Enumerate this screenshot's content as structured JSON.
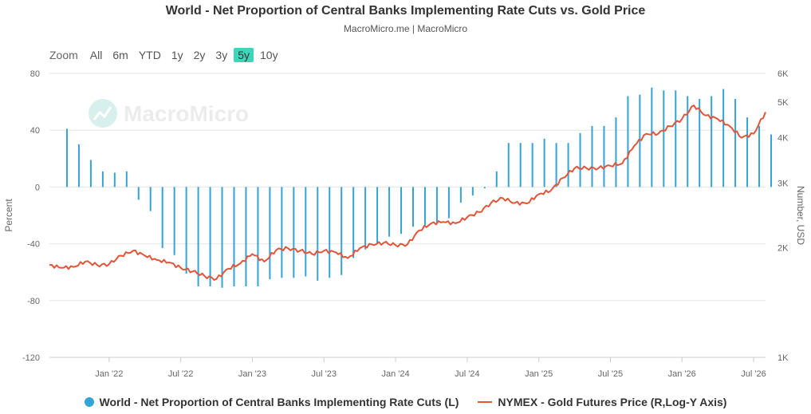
{
  "header": {
    "title": "World - Net Proportion of Central Banks Implementing Rate Cuts vs. Gold Price",
    "subtitle": "MacroMicro.me | MacroMicro"
  },
  "range_selector": {
    "zoom_label": "Zoom",
    "buttons": [
      "All",
      "6m",
      "YTD",
      "1y",
      "2y",
      "3y",
      "5y",
      "10y"
    ],
    "active": "5y"
  },
  "watermark": "MacroMicro",
  "colors": {
    "bars": "#34a4d6",
    "line": "#e1553a",
    "active_range": "#3ed6b8"
  },
  "chart_data": {
    "type": "bar+line",
    "title": "World - Net Proportion of Central Banks Implementing Rate Cuts vs. Gold Price",
    "y_left": {
      "label": "Percent",
      "min": -120,
      "max": 80,
      "ticks": [
        "80",
        "40",
        "0",
        "-40",
        "-80",
        "-120"
      ]
    },
    "y_right": {
      "label": "Number, USD",
      "scale": "log",
      "min": 1000,
      "max": 6000,
      "ticks": [
        "6K",
        "5K",
        "4K",
        "3K",
        "2K",
        "1K"
      ]
    },
    "x_ticks": [
      "Jan '22",
      "Jul '22",
      "Jan '23",
      "Jul '23",
      "Jan '24",
      "Jul '24",
      "Jan '25",
      "Jul '25",
      "Jan '26",
      "Jul '26"
    ],
    "x_range": [
      "2021-08",
      "2026-08"
    ],
    "legend_position": "bottom",
    "series": [
      {
        "name": "World - Net Proportion of Central Banks Implementing Rate Cuts (L)",
        "kind": "bar",
        "dates": [
          "2021-09",
          "2021-10",
          "2021-11",
          "2021-12",
          "2022-01",
          "2022-02",
          "2022-03",
          "2022-04",
          "2022-05",
          "2022-06",
          "2022-07",
          "2022-08",
          "2022-09",
          "2022-10",
          "2022-11",
          "2022-12",
          "2023-01",
          "2023-02",
          "2023-03",
          "2023-04",
          "2023-05",
          "2023-06",
          "2023-07",
          "2023-08",
          "2023-09",
          "2023-10",
          "2023-11",
          "2023-12",
          "2024-01",
          "2024-02",
          "2024-03",
          "2024-04",
          "2024-05",
          "2024-06",
          "2024-07",
          "2024-08",
          "2024-09",
          "2024-10",
          "2024-11",
          "2024-12",
          "2025-01",
          "2025-02",
          "2025-03",
          "2025-04",
          "2025-05",
          "2025-06",
          "2025-07",
          "2025-08",
          "2025-09",
          "2025-10",
          "2025-11",
          "2025-12",
          "2026-01",
          "2026-02",
          "2026-03",
          "2026-04",
          "2026-05",
          "2026-06",
          "2026-07",
          "2026-08"
        ],
        "values": [
          41,
          30,
          19,
          11,
          10,
          11,
          -9,
          -17,
          -43,
          -48,
          -61,
          -70,
          -70,
          -71,
          -70,
          -70,
          -70,
          -65,
          -64,
          -64,
          -63,
          -66,
          -64,
          -62,
          -50,
          -44,
          -40,
          -35,
          -33,
          -28,
          -27,
          -25,
          -22,
          -11,
          -6,
          -1,
          11,
          31,
          31,
          31,
          34,
          31,
          31,
          38,
          43,
          43,
          49,
          64,
          65,
          70,
          68,
          68,
          64,
          62,
          64,
          69,
          62,
          49,
          43,
          37
        ]
      },
      {
        "name": "NYMEX - Gold Futures Price (R,Log-Y Axis)",
        "kind": "line",
        "dates": [
          "2021-08",
          "2021-09",
          "2021-10",
          "2021-11",
          "2021-12",
          "2022-01",
          "2022-02",
          "2022-03",
          "2022-04",
          "2022-05",
          "2022-06",
          "2022-07",
          "2022-08",
          "2022-09",
          "2022-10",
          "2022-11",
          "2022-12",
          "2023-01",
          "2023-02",
          "2023-03",
          "2023-04",
          "2023-05",
          "2023-06",
          "2023-07",
          "2023-08",
          "2023-09",
          "2023-10",
          "2023-11",
          "2023-12",
          "2024-01",
          "2024-02",
          "2024-03",
          "2024-04",
          "2024-05",
          "2024-06",
          "2024-07",
          "2024-08",
          "2024-09",
          "2024-10",
          "2024-11",
          "2024-12",
          "2025-01",
          "2025-02",
          "2025-03",
          "2025-04",
          "2025-05",
          "2025-06",
          "2025-07",
          "2025-08",
          "2025-09",
          "2025-10",
          "2025-11",
          "2025-12",
          "2026-01",
          "2026-02",
          "2026-03",
          "2026-04",
          "2026-05",
          "2026-06",
          "2026-07",
          "2026-08"
        ],
        "values": [
          1790,
          1760,
          1770,
          1830,
          1790,
          1800,
          1900,
          1960,
          1900,
          1850,
          1820,
          1760,
          1720,
          1670,
          1640,
          1750,
          1810,
          1920,
          1830,
          1970,
          1990,
          1960,
          1920,
          1960,
          1940,
          1870,
          1990,
          2040,
          2060,
          2030,
          2040,
          2230,
          2330,
          2350,
          2330,
          2420,
          2500,
          2650,
          2730,
          2650,
          2640,
          2800,
          2860,
          3100,
          3300,
          3300,
          3300,
          3350,
          3400,
          3800,
          4100,
          4100,
          4300,
          4500,
          4900,
          4600,
          4500,
          4300,
          4000,
          4100,
          4700
        ]
      }
    ]
  }
}
